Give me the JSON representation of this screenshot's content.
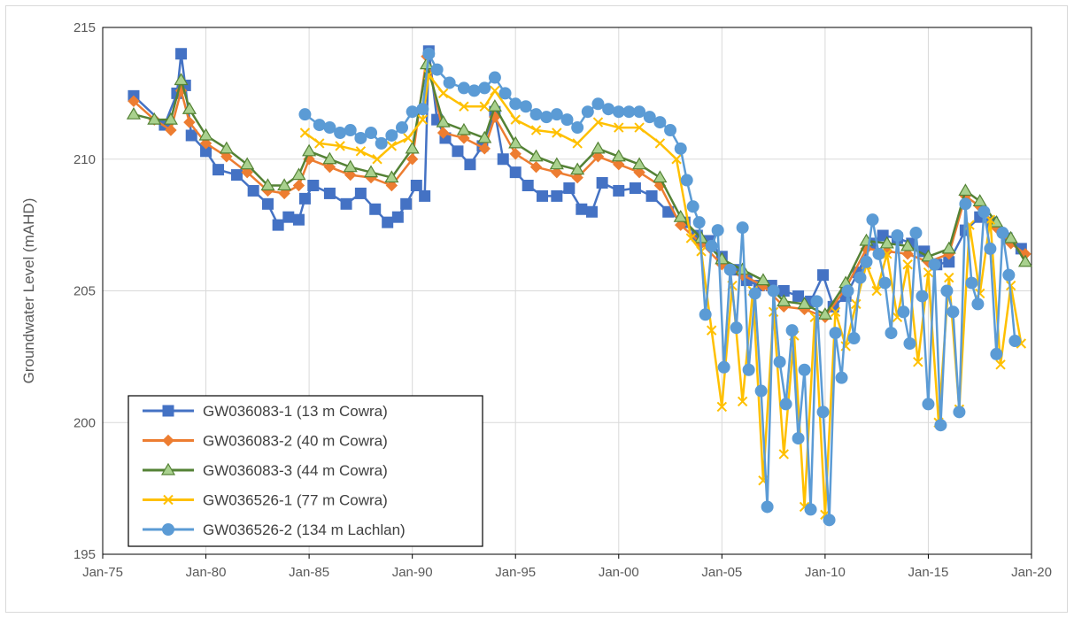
{
  "chart_data": {
    "type": "line",
    "title": "",
    "xlabel": "",
    "ylabel": "Groundwater Level (mAHD)",
    "xlim": [
      1975,
      2020
    ],
    "ylim": [
      195,
      215
    ],
    "x_tick_labels": [
      "Jan-75",
      "Jan-80",
      "Jan-85",
      "Jan-90",
      "Jan-95",
      "Jan-00",
      "Jan-05",
      "Jan-10",
      "Jan-15",
      "Jan-20"
    ],
    "y_tick_labels": [
      "195",
      "200",
      "205",
      "210",
      "215"
    ],
    "grid": "both",
    "legend_position": "bottom-left",
    "series": [
      {
        "name": "GW036083-1 (13 m Cowra)",
        "color": "#4472c4",
        "marker": "square",
        "x": [
          1976.5,
          1978.0,
          1978.6,
          1978.8,
          1979.0,
          1979.3,
          1980.0,
          1980.6,
          1981.5,
          1982.3,
          1983.0,
          1983.5,
          1984.0,
          1984.5,
          1984.8,
          1985.2,
          1986.0,
          1986.8,
          1987.5,
          1988.2,
          1988.8,
          1989.3,
          1989.7,
          1990.2,
          1990.6,
          1990.8,
          1991.2,
          1991.6,
          1992.2,
          1992.8,
          1993.4,
          1994.0,
          1994.4,
          1995.0,
          1995.6,
          1996.3,
          1997.0,
          1997.6,
          1998.2,
          1998.7,
          1999.2,
          2000.0,
          2000.8,
          2001.6,
          2002.4,
          2003.2,
          2003.8,
          2004.4,
          2005.0,
          2005.6,
          2006.2,
          2006.8,
          2007.4,
          2008.0,
          2008.7,
          2009.3,
          2009.9,
          2010.4,
          2011.0,
          2011.6,
          2012.2,
          2012.8,
          2013.5,
          2014.2,
          2014.8,
          2015.4,
          2016.0,
          2016.8,
          2017.5,
          2018.1,
          2018.8,
          2019.5
        ],
        "y": [
          212.4,
          211.3,
          212.5,
          214.0,
          212.8,
          210.9,
          210.3,
          209.6,
          209.4,
          208.8,
          208.3,
          207.5,
          207.8,
          207.7,
          208.5,
          209.0,
          208.7,
          208.3,
          208.7,
          208.1,
          207.6,
          207.8,
          208.3,
          209.0,
          208.6,
          214.1,
          211.5,
          210.8,
          210.3,
          209.8,
          210.5,
          211.8,
          210.0,
          209.5,
          209.0,
          208.6,
          208.6,
          208.9,
          208.1,
          208.0,
          209.1,
          208.8,
          208.9,
          208.6,
          208.0,
          207.6,
          207.1,
          206.9,
          206.3,
          205.8,
          205.4,
          205.2,
          205.2,
          205.0,
          204.8,
          204.6,
          205.6,
          204.4,
          204.8,
          205.7,
          206.8,
          207.1,
          207.0,
          206.8,
          206.5,
          206.0,
          206.1,
          207.3,
          207.8,
          207.6,
          207.0,
          206.6
        ]
      },
      {
        "name": "GW036083-2 (40 m Cowra)",
        "color": "#ed7d31",
        "marker": "diamond",
        "x": [
          1976.5,
          1977.5,
          1978.3,
          1978.8,
          1979.2,
          1980.0,
          1981.0,
          1982.0,
          1983.0,
          1983.8,
          1984.5,
          1985.0,
          1986.0,
          1987.0,
          1988.0,
          1989.0,
          1990.0,
          1990.7,
          1991.5,
          1992.5,
          1993.5,
          1994.0,
          1995.0,
          1996.0,
          1997.0,
          1998.0,
          1999.0,
          2000.0,
          2001.0,
          2002.0,
          2003.0,
          2004.0,
          2005.0,
          2006.0,
          2007.0,
          2008.0,
          2009.0,
          2010.0,
          2011.0,
          2012.0,
          2013.0,
          2014.0,
          2015.0,
          2016.0,
          2016.8,
          2017.5,
          2018.3,
          2019.0,
          2019.7
        ],
        "y": [
          212.2,
          211.5,
          211.1,
          212.6,
          211.4,
          210.6,
          210.1,
          209.5,
          208.8,
          208.7,
          209.0,
          210.0,
          209.7,
          209.4,
          209.3,
          209.0,
          210.0,
          213.9,
          211.0,
          210.8,
          210.4,
          211.6,
          210.2,
          209.7,
          209.5,
          209.3,
          210.1,
          209.8,
          209.5,
          209.0,
          207.5,
          206.8,
          206.0,
          205.6,
          205.2,
          204.4,
          204.3,
          204.0,
          205.1,
          206.6,
          206.5,
          206.4,
          206.1,
          206.4,
          208.6,
          208.2,
          207.4,
          206.8,
          206.4
        ]
      },
      {
        "name": "GW036083-3 (44 m Cowra)",
        "color": "#548235",
        "marker": "triangle",
        "x": [
          1976.5,
          1977.5,
          1978.3,
          1978.8,
          1979.2,
          1980.0,
          1981.0,
          1982.0,
          1983.0,
          1983.8,
          1984.5,
          1985.0,
          1986.0,
          1987.0,
          1988.0,
          1989.0,
          1990.0,
          1990.7,
          1991.5,
          1992.5,
          1993.5,
          1994.0,
          1995.0,
          1996.0,
          1997.0,
          1998.0,
          1999.0,
          2000.0,
          2001.0,
          2002.0,
          2003.0,
          2004.0,
          2005.0,
          2006.0,
          2007.0,
          2008.0,
          2009.0,
          2010.0,
          2011.0,
          2012.0,
          2013.0,
          2014.0,
          2015.0,
          2016.0,
          2016.8,
          2017.5,
          2018.3,
          2019.0,
          2019.7
        ],
        "y": [
          211.7,
          211.5,
          211.5,
          213.0,
          211.9,
          210.9,
          210.4,
          209.8,
          209.0,
          209.0,
          209.4,
          210.3,
          210.0,
          209.7,
          209.5,
          209.3,
          210.4,
          213.6,
          211.4,
          211.1,
          210.8,
          212.0,
          210.6,
          210.1,
          209.8,
          209.6,
          210.4,
          210.1,
          209.8,
          209.3,
          207.8,
          207.0,
          206.2,
          205.8,
          205.4,
          204.6,
          204.5,
          204.1,
          205.3,
          206.9,
          206.8,
          206.7,
          206.3,
          206.6,
          208.8,
          208.4,
          207.6,
          207.0,
          206.1
        ]
      },
      {
        "name": "GW036526-1 (77 m Cowra)",
        "color": "#ffc000",
        "marker": "x",
        "x": [
          1984.8,
          1985.5,
          1986.5,
          1987.5,
          1988.3,
          1989.0,
          1989.8,
          1990.5,
          1990.8,
          1991.5,
          1992.5,
          1993.5,
          1994.0,
          1995.0,
          1996.0,
          1997.0,
          1998.0,
          1999.0,
          2000.0,
          2001.0,
          2002.0,
          2002.8,
          2003.5,
          2004.0,
          2004.5,
          2005.0,
          2005.5,
          2006.0,
          2006.5,
          2007.0,
          2007.5,
          2008.0,
          2008.5,
          2009.0,
          2009.5,
          2010.0,
          2010.5,
          2011.0,
          2011.5,
          2012.0,
          2012.5,
          2013.0,
          2013.5,
          2014.0,
          2014.5,
          2015.0,
          2015.5,
          2016.0,
          2016.5,
          2017.0,
          2017.5,
          2018.0,
          2018.5,
          2019.0,
          2019.5
        ],
        "y": [
          211.0,
          210.6,
          210.5,
          210.3,
          210.0,
          210.5,
          210.8,
          211.5,
          213.2,
          212.5,
          212.0,
          212.0,
          212.6,
          211.5,
          211.1,
          211.0,
          210.6,
          211.4,
          211.2,
          211.2,
          210.6,
          210.0,
          207.0,
          206.5,
          203.5,
          200.6,
          205.2,
          200.8,
          205.0,
          197.8,
          204.2,
          198.8,
          203.3,
          196.8,
          204.0,
          196.5,
          204.2,
          202.9,
          204.5,
          206.0,
          205.0,
          206.4,
          204.0,
          206.0,
          202.3,
          205.7,
          200.0,
          205.5,
          200.5,
          207.5,
          204.9,
          207.7,
          202.2,
          205.2,
          203.0
        ]
      },
      {
        "name": "GW036526-2 (134 m Lachlan)",
        "color": "#5b9bd5",
        "marker": "circle",
        "x": [
          1984.8,
          1985.5,
          1986.0,
          1986.5,
          1987.0,
          1987.5,
          1988.0,
          1988.5,
          1989.0,
          1989.5,
          1990.0,
          1990.5,
          1990.8,
          1991.2,
          1991.8,
          1992.5,
          1993.0,
          1993.5,
          1994.0,
          1994.5,
          1995.0,
          1995.5,
          1996.0,
          1996.5,
          1997.0,
          1997.5,
          1998.0,
          1998.5,
          1999.0,
          1999.5,
          2000.0,
          2000.5,
          2001.0,
          2001.5,
          2002.0,
          2002.5,
          2003.0,
          2003.3,
          2003.6,
          2003.9,
          2004.2,
          2004.5,
          2004.8,
          2005.1,
          2005.4,
          2005.7,
          2006.0,
          2006.3,
          2006.6,
          2006.9,
          2007.2,
          2007.5,
          2007.8,
          2008.1,
          2008.4,
          2008.7,
          2009.0,
          2009.3,
          2009.6,
          2009.9,
          2010.2,
          2010.5,
          2010.8,
          2011.1,
          2011.4,
          2011.7,
          2012.0,
          2012.3,
          2012.6,
          2012.9,
          2013.2,
          2013.5,
          2013.8,
          2014.1,
          2014.4,
          2014.7,
          2015.0,
          2015.3,
          2015.6,
          2015.9,
          2016.2,
          2016.5,
          2016.8,
          2017.1,
          2017.4,
          2017.7,
          2018.0,
          2018.3,
          2018.6,
          2018.9,
          2019.2
        ],
        "y": [
          211.7,
          211.3,
          211.2,
          211.0,
          211.1,
          210.8,
          211.0,
          210.6,
          210.9,
          211.2,
          211.8,
          211.9,
          214.0,
          213.4,
          212.9,
          212.7,
          212.6,
          212.7,
          213.1,
          212.5,
          212.1,
          212.0,
          211.7,
          211.6,
          211.7,
          211.5,
          211.2,
          211.8,
          212.1,
          211.9,
          211.8,
          211.8,
          211.8,
          211.6,
          211.4,
          211.1,
          210.4,
          209.2,
          208.2,
          207.6,
          204.1,
          206.7,
          207.3,
          202.1,
          205.8,
          203.6,
          207.4,
          202.0,
          204.9,
          201.2,
          196.8,
          205.0,
          202.3,
          200.7,
          203.5,
          199.4,
          202.0,
          196.7,
          204.6,
          200.4,
          196.3,
          203.4,
          201.7,
          205.0,
          203.2,
          205.5,
          206.1,
          207.7,
          206.4,
          205.3,
          203.4,
          207.1,
          204.2,
          203.0,
          207.2,
          204.8,
          200.7,
          206.0,
          199.9,
          205.0,
          204.2,
          200.4,
          208.3,
          205.3,
          204.5,
          208.0,
          206.6,
          202.6,
          207.2,
          205.6,
          203.1
        ]
      }
    ]
  }
}
